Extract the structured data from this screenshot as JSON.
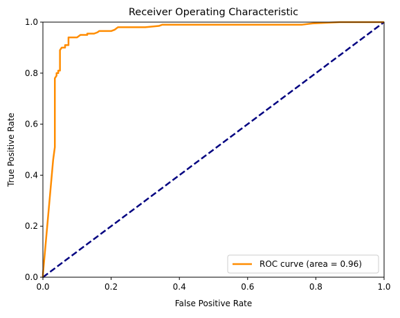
{
  "chart_data": {
    "type": "line",
    "title": "Receiver Operating Characteristic",
    "xlabel": "False Positive Rate",
    "ylabel": "True Positive Rate",
    "xlim": [
      0.0,
      1.0
    ],
    "ylim": [
      0.0,
      1.0
    ],
    "xticks": [
      "0.0",
      "0.2",
      "0.4",
      "0.6",
      "0.8",
      "1.0"
    ],
    "yticks": [
      "0.0",
      "0.2",
      "0.4",
      "0.6",
      "0.8",
      "1.0"
    ],
    "grid": false,
    "legend_position": "lower right",
    "series": [
      {
        "name": "ROC curve (area = 0.96)",
        "color": "#ff8c00",
        "style": "solid",
        "x": [
          0.0,
          0.0,
          0.03,
          0.035,
          0.035,
          0.04,
          0.04,
          0.045,
          0.045,
          0.05,
          0.05,
          0.055,
          0.06,
          0.065,
          0.065,
          0.07,
          0.075,
          0.075,
          0.1,
          0.1,
          0.11,
          0.13,
          0.13,
          0.15,
          0.16,
          0.165,
          0.2,
          0.21,
          0.22,
          0.3,
          0.34,
          0.35,
          0.76,
          0.79,
          0.87,
          1.0
        ],
        "y": [
          0.0,
          0.01,
          0.46,
          0.51,
          0.78,
          0.79,
          0.8,
          0.8,
          0.81,
          0.81,
          0.89,
          0.9,
          0.9,
          0.9,
          0.91,
          0.91,
          0.91,
          0.94,
          0.94,
          0.94,
          0.95,
          0.95,
          0.955,
          0.955,
          0.96,
          0.965,
          0.965,
          0.97,
          0.98,
          0.98,
          0.985,
          0.99,
          0.99,
          0.995,
          1.0,
          1.0
        ]
      },
      {
        "name": "",
        "color": "#000080",
        "style": "dashed",
        "x": [
          0.0,
          1.0
        ],
        "y": [
          0.0,
          1.0
        ]
      }
    ]
  }
}
